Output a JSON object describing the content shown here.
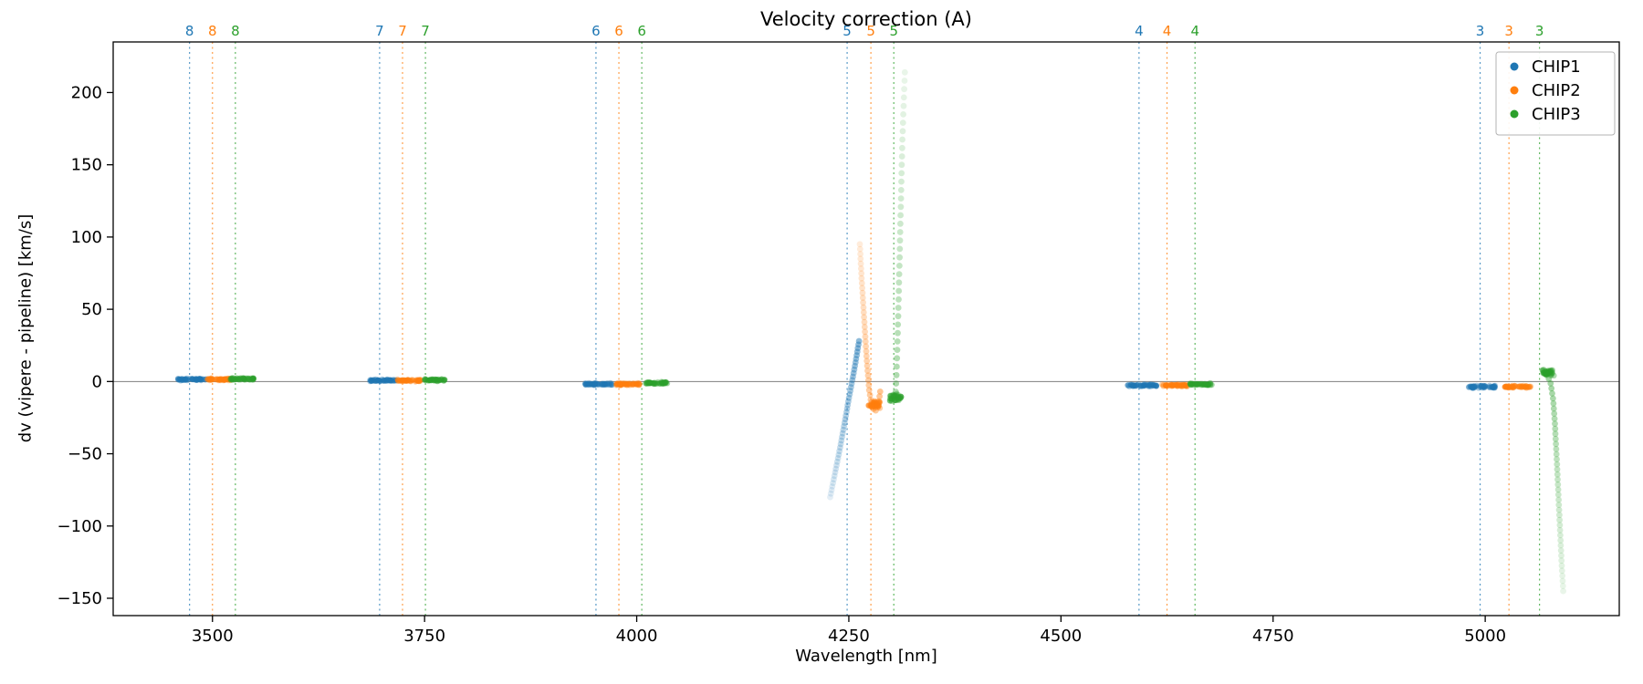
{
  "chart_data": {
    "type": "scatter",
    "title": "Velocity correction (A)",
    "xlabel": "Wavelength [nm]",
    "ylabel": "dv (vipere - pipeline) [km/s]",
    "xlim": [
      3383,
      5158
    ],
    "ylim": [
      -162,
      235
    ],
    "xticks": [
      3500,
      3750,
      4000,
      4250,
      4500,
      4750,
      5000
    ],
    "yticks": [
      -150,
      -100,
      -50,
      0,
      50,
      100,
      150,
      200
    ],
    "zero_line_y": 0,
    "grid": false,
    "legend_position": "upper right",
    "series_colors": {
      "CHIP1": "#1f77b4",
      "CHIP2": "#ff7f0e",
      "CHIP3": "#2ca02c"
    },
    "legend": [
      {
        "label": "CHIP1",
        "color": "#1f77b4"
      },
      {
        "label": "CHIP2",
        "color": "#ff7f0e"
      },
      {
        "label": "CHIP3",
        "color": "#2ca02c"
      }
    ],
    "order_markers": [
      {
        "order": "8",
        "lines": [
          {
            "chip": "CHIP1",
            "wavelength": 3473
          },
          {
            "chip": "CHIP2",
            "wavelength": 3500
          },
          {
            "chip": "CHIP3",
            "wavelength": 3527
          }
        ]
      },
      {
        "order": "7",
        "lines": [
          {
            "chip": "CHIP1",
            "wavelength": 3697
          },
          {
            "chip": "CHIP2",
            "wavelength": 3724
          },
          {
            "chip": "CHIP3",
            "wavelength": 3751
          }
        ]
      },
      {
        "order": "6",
        "lines": [
          {
            "chip": "CHIP1",
            "wavelength": 3952
          },
          {
            "chip": "CHIP2",
            "wavelength": 3979
          },
          {
            "chip": "CHIP3",
            "wavelength": 4006
          }
        ]
      },
      {
        "order": "5",
        "lines": [
          {
            "chip": "CHIP1",
            "wavelength": 4248
          },
          {
            "chip": "CHIP2",
            "wavelength": 4276
          },
          {
            "chip": "CHIP3",
            "wavelength": 4303
          }
        ]
      },
      {
        "order": "4",
        "lines": [
          {
            "chip": "CHIP1",
            "wavelength": 4592
          },
          {
            "chip": "CHIP2",
            "wavelength": 4625
          },
          {
            "chip": "CHIP3",
            "wavelength": 4658
          }
        ]
      },
      {
        "order": "3",
        "lines": [
          {
            "chip": "CHIP1",
            "wavelength": 4994
          },
          {
            "chip": "CHIP2",
            "wavelength": 5028
          },
          {
            "chip": "CHIP3",
            "wavelength": 5064
          }
        ]
      }
    ],
    "clusters": [
      {
        "chip": "CHIP1",
        "order": "8",
        "x_range": [
          3459,
          3493
        ],
        "y_center": 1.5,
        "y_spread": 0.9,
        "n": 60
      },
      {
        "chip": "CHIP2",
        "order": "8",
        "x_range": [
          3494,
          3522
        ],
        "y_center": 1.5,
        "y_spread": 0.9,
        "n": 55
      },
      {
        "chip": "CHIP3",
        "order": "8",
        "x_range": [
          3521,
          3549
        ],
        "y_center": 1.8,
        "y_spread": 0.9,
        "n": 55
      },
      {
        "chip": "CHIP1",
        "order": "7",
        "x_range": [
          3685,
          3717
        ],
        "y_center": 0.7,
        "y_spread": 0.9,
        "n": 60
      },
      {
        "chip": "CHIP2",
        "order": "7",
        "x_range": [
          3718,
          3746
        ],
        "y_center": 0.7,
        "y_spread": 0.9,
        "n": 55
      },
      {
        "chip": "CHIP3",
        "order": "7",
        "x_range": [
          3749,
          3774
        ],
        "y_center": 1.0,
        "y_spread": 0.9,
        "n": 50
      },
      {
        "chip": "CHIP1",
        "order": "6",
        "x_range": [
          3939,
          3971
        ],
        "y_center": -1.8,
        "y_spread": 0.9,
        "n": 60
      },
      {
        "chip": "CHIP2",
        "order": "6",
        "x_range": [
          3976,
          4004
        ],
        "y_center": -1.8,
        "y_spread": 0.9,
        "n": 55
      },
      {
        "chip": "CHIP3",
        "order": "6",
        "x_range": [
          4010,
          4037
        ],
        "y_center": -1.0,
        "y_spread": 0.9,
        "n": 55
      },
      {
        "chip": "CHIP2",
        "order": "5",
        "x_range": [
          4272,
          4287
        ],
        "y_center": -16,
        "y_spread": 2.8,
        "n": 45
      },
      {
        "chip": "CHIP3",
        "order": "5",
        "x_range": [
          4298,
          4312
        ],
        "y_center": -11,
        "y_spread": 2.8,
        "n": 45
      },
      {
        "chip": "CHIP1",
        "order": "4",
        "x_range": [
          4578,
          4613
        ],
        "y_center": -2.6,
        "y_spread": 0.9,
        "n": 60
      },
      {
        "chip": "CHIP2",
        "order": "4",
        "x_range": [
          4619,
          4649
        ],
        "y_center": -2.6,
        "y_spread": 0.9,
        "n": 55
      },
      {
        "chip": "CHIP3",
        "order": "4",
        "x_range": [
          4651,
          4678
        ],
        "y_center": -1.9,
        "y_spread": 0.9,
        "n": 50
      },
      {
        "chip": "CHIP1",
        "order": "3",
        "x_range": [
          4979,
          5012
        ],
        "y_center": -3.6,
        "y_spread": 0.9,
        "n": 60
      },
      {
        "chip": "CHIP2",
        "order": "3",
        "x_range": [
          5023,
          5054
        ],
        "y_center": -3.6,
        "y_spread": 0.9,
        "n": 55
      },
      {
        "chip": "CHIP3",
        "order": "3",
        "x_range": [
          5067,
          5081
        ],
        "y_center": 6,
        "y_spread": 2.2,
        "n": 45
      }
    ],
    "streaks": [
      {
        "chip": "CHIP1",
        "order": "5",
        "n": 45,
        "alpha": [
          0.12,
          0.5
        ],
        "points": [
          [
            4228,
            -80
          ],
          [
            4240,
            -45
          ],
          [
            4250,
            -12
          ],
          [
            4257,
            10
          ],
          [
            4262,
            28
          ]
        ]
      },
      {
        "chip": "CHIP2",
        "order": "5",
        "n": 40,
        "alpha": [
          0.15,
          0.45
        ],
        "points": [
          [
            4263,
            95
          ],
          [
            4265,
            72
          ],
          [
            4268,
            44
          ],
          [
            4271,
            16
          ],
          [
            4274,
            -6
          ],
          [
            4277,
            -17
          ],
          [
            4281,
            -21
          ],
          [
            4285,
            -15
          ],
          [
            4287,
            -7
          ]
        ]
      },
      {
        "chip": "CHIP3",
        "order": "5",
        "n": 40,
        "alpha": [
          0.1,
          0.4
        ],
        "points": [
          [
            4316,
            214
          ],
          [
            4313,
            165
          ],
          [
            4311,
            115
          ],
          [
            4309,
            65
          ],
          [
            4307,
            20
          ],
          [
            4305,
            -13
          ]
        ]
      },
      {
        "chip": "CHIP3",
        "order": "3",
        "n": 45,
        "alpha": [
          0.45,
          0.1
        ],
        "points": [
          [
            5069,
            8
          ],
          [
            5073,
            5
          ],
          [
            5077,
            -1
          ],
          [
            5080,
            -12
          ],
          [
            5082,
            -28
          ],
          [
            5084,
            -50
          ],
          [
            5086,
            -75
          ],
          [
            5088,
            -100
          ],
          [
            5090,
            -125
          ],
          [
            5092,
            -145
          ]
        ]
      }
    ]
  }
}
